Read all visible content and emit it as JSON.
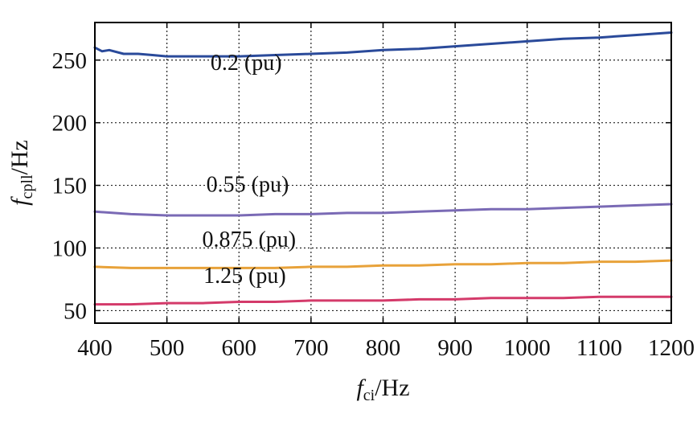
{
  "chart_data": {
    "type": "line",
    "x_axis": {
      "symbol": "f",
      "subscript": "ci",
      "unit": "/Hz",
      "min": 400,
      "max": 1200,
      "ticks": [
        400,
        500,
        600,
        700,
        800,
        900,
        1000,
        1100,
        1200
      ]
    },
    "y_axis": {
      "symbol": "f",
      "subscript": "cpll",
      "unit": "/Hz",
      "min": 40,
      "max": 280,
      "ticks": [
        50,
        100,
        150,
        200,
        250
      ]
    },
    "grid": true,
    "series": [
      {
        "name": "0.2 (pu)",
        "color": "#2a4a9a",
        "label_at": [
          610,
          242
        ],
        "x": [
          400,
          410,
          420,
          440,
          460,
          480,
          500,
          550,
          600,
          650,
          700,
          750,
          800,
          850,
          900,
          950,
          1000,
          1050,
          1100,
          1150,
          1200
        ],
        "y": [
          260,
          257,
          258,
          255,
          255,
          254,
          253,
          253,
          253,
          254,
          255,
          256,
          258,
          259,
          261,
          263,
          265,
          267,
          268,
          270,
          272
        ]
      },
      {
        "name": "0.55 (pu)",
        "color": "#7a6ab5",
        "label_at": [
          612,
          145
        ],
        "x": [
          400,
          450,
          500,
          550,
          600,
          650,
          700,
          750,
          800,
          850,
          900,
          950,
          1000,
          1050,
          1100,
          1150,
          1200
        ],
        "y": [
          129,
          127,
          126,
          126,
          126,
          127,
          127,
          128,
          128,
          129,
          130,
          131,
          131,
          132,
          133,
          134,
          135
        ]
      },
      {
        "name": "0.875 (pu)",
        "color": "#e8a23a",
        "label_at": [
          614,
          101
        ],
        "x": [
          400,
          450,
          500,
          550,
          600,
          650,
          700,
          750,
          800,
          850,
          900,
          950,
          1000,
          1050,
          1100,
          1150,
          1200
        ],
        "y": [
          85,
          84,
          84,
          84,
          84,
          84,
          85,
          85,
          86,
          86,
          87,
          87,
          88,
          88,
          89,
          89,
          90
        ]
      },
      {
        "name": "1.25 (pu)",
        "color": "#d43a6a",
        "label_at": [
          608,
          72
        ],
        "x": [
          400,
          450,
          500,
          550,
          600,
          650,
          700,
          750,
          800,
          850,
          900,
          950,
          1000,
          1050,
          1100,
          1150,
          1200
        ],
        "y": [
          55,
          55,
          56,
          56,
          57,
          57,
          58,
          58,
          58,
          59,
          59,
          60,
          60,
          60,
          61,
          61,
          61
        ]
      }
    ]
  }
}
